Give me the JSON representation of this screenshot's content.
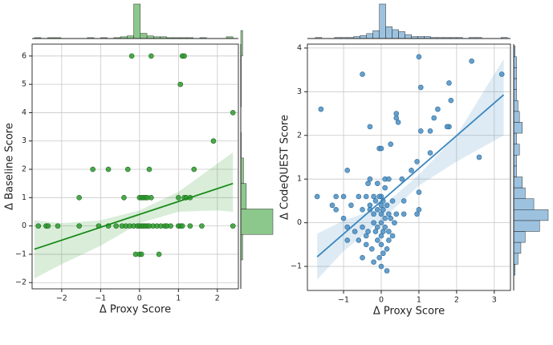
{
  "chart_data": [
    {
      "type": "scatter",
      "xlabel": "Δ Proxy Score",
      "ylabel": "Δ Baseline Score",
      "color": "#2e9a2e",
      "edgecolor": "#1c6b1c",
      "xlim": [
        -2.76,
        2.54
      ],
      "ylim": [
        -2.22,
        6.42
      ],
      "xticks": [
        {
          "value": -2,
          "label": "−2"
        },
        {
          "value": -1,
          "label": "−1"
        },
        0,
        1,
        2
      ],
      "yticks": [
        {
          "value": -2,
          "label": "−2"
        },
        {
          "value": -1,
          "label": "−1"
        },
        0,
        1,
        2,
        3,
        4,
        5,
        6
      ],
      "grid": true,
      "x": [
        -0.2,
        0.3,
        1.1,
        1.15,
        1.05,
        2.4,
        1.9,
        -1.2,
        -0.8,
        -0.3,
        0.25,
        1.4,
        -1.55,
        -0.4,
        0,
        0.05,
        0.1,
        0.15,
        0.2,
        0.3,
        1.0,
        1.15,
        1.2,
        1.3,
        -2.6,
        -2.4,
        -2.35,
        -2.1,
        -1.55,
        -1.05,
        -0.8,
        -0.6,
        -0.45,
        -0.35,
        -0.25,
        -0.15,
        -0.05,
        0,
        0.05,
        0.1,
        0.15,
        0.2,
        0.25,
        0.35,
        0.45,
        0.55,
        0.65,
        0.7,
        0.8,
        1.0,
        1.05,
        1.1,
        1.3,
        1.6,
        2.4,
        -0.1,
        0,
        0.05,
        0.5
      ],
      "y": [
        6,
        6,
        6,
        6,
        5,
        4,
        3,
        2,
        2,
        2,
        2,
        2,
        1,
        1,
        1,
        1,
        1,
        1,
        1,
        1,
        1,
        1,
        1,
        1,
        0,
        0,
        0,
        0,
        0,
        0,
        0,
        0,
        0,
        0,
        0,
        0,
        0,
        0,
        0,
        0,
        0,
        0,
        0,
        0,
        0,
        0,
        0,
        0,
        0,
        0,
        0,
        0,
        0,
        0,
        0,
        -1,
        -1,
        -1,
        -1
      ],
      "regression": {
        "x": [
          -2.7,
          2.4
        ],
        "y": [
          -0.82,
          1.5
        ]
      },
      "band": {
        "x": [
          -2.7,
          -2,
          -1,
          0,
          1,
          2,
          2.4
        ],
        "lower": [
          -1.85,
          -1.35,
          -0.7,
          0.1,
          0.5,
          0.55,
          0.5
        ],
        "upper": [
          0.2,
          0.1,
          0.2,
          0.55,
          1.2,
          2.2,
          2.6
        ]
      },
      "x_hist": {
        "bins": [
          -2.7,
          -2.53,
          -2.36,
          -2.19,
          -2.02,
          -1.85,
          -1.68,
          -1.51,
          -1.34,
          -1.17,
          -1.0,
          -0.83,
          -0.66,
          -0.49,
          -0.32,
          -0.15,
          0.02,
          0.19,
          0.36,
          0.53,
          0.7,
          0.87,
          1.04,
          1.21,
          1.38,
          1.55,
          1.72,
          1.89,
          2.06,
          2.23,
          2.4
        ],
        "counts": [
          1,
          0,
          1,
          1,
          0,
          0,
          0,
          0,
          1,
          0,
          1,
          0,
          1,
          2,
          3,
          40,
          6,
          3,
          2,
          2,
          1,
          1,
          1,
          1,
          0,
          1,
          0,
          0,
          0,
          2
        ]
      },
      "y_hist": {
        "bins": [
          -1.2,
          -0.3,
          0.6,
          1.5,
          2.4,
          3.3,
          4.2,
          5.1,
          6.0,
          6.9
        ],
        "counts": [
          4,
          70,
          12,
          6,
          1,
          0,
          1,
          1,
          4
        ]
      }
    },
    {
      "type": "scatter",
      "xlabel": "Δ Proxy Score",
      "ylabel": "Δ CodeQUEST Score",
      "color": "#4a8fc4",
      "edgecolor": "#2f6a99",
      "xlim": [
        -1.96,
        3.43
      ],
      "ylim": [
        -1.55,
        4.09
      ],
      "xticks": [
        {
          "value": -1,
          "label": "−1"
        },
        0,
        1,
        2,
        3
      ],
      "yticks": [
        {
          "value": -1,
          "label": "−1"
        },
        0,
        1,
        2,
        3,
        4
      ],
      "grid": true,
      "x": [
        3.2,
        2.4,
        1.0,
        1.8,
        1.05,
        -0.5,
        -1.6,
        1.85,
        1.5,
        0.4,
        0.45,
        1.4,
        -0.3,
        0.4,
        1.8,
        1.75,
        1.3,
        1.05,
        -0.05,
        0,
        0.25,
        1.3,
        2.6,
        0.95,
        -0.9,
        0.8,
        -0.3,
        0.1,
        0.2,
        -0.1,
        -0.35,
        0.55,
        -1.2,
        -1.0,
        -0.6,
        -0.4,
        -0.2,
        -0.15,
        0,
        0.05,
        0.15,
        0.3,
        1.0,
        1.0,
        0.6,
        -1.3,
        -1.7,
        -0.8,
        -0.5,
        -0.3,
        -0.2,
        -0.1,
        0,
        0.05,
        0.1,
        0.2,
        0.35,
        0.6,
        0.95,
        -1.0,
        -1.2,
        -0.9,
        -0.7,
        -0.5,
        -0.4,
        -0.2,
        -0.1,
        0,
        0.05,
        0.1,
        0.2,
        0.3,
        -0.6,
        -0.4,
        -0.1,
        0,
        0.2,
        0.15,
        -0.25,
        -0.5,
        -0.2,
        -0.05,
        0,
        0.15,
        0.05,
        -0.9,
        0,
        0.1,
        -0.05,
        0.25,
        -0.3,
        -0.15,
        0,
        0.4,
        -0.35
      ],
      "y": [
        3.4,
        3.7,
        3.8,
        3.2,
        3.1,
        3.4,
        2.6,
        2.8,
        2.6,
        2.5,
        2.3,
        2.4,
        2.2,
        2.4,
        2.2,
        2.2,
        2.1,
        2.1,
        1.7,
        1.7,
        1.8,
        1.6,
        1.5,
        1.4,
        1.2,
        1.2,
        1.0,
        1.0,
        1.0,
        0.9,
        0.9,
        1.0,
        0.6,
        0.6,
        0.6,
        0.6,
        0.6,
        0.5,
        0.6,
        0.5,
        0.4,
        0.5,
        0.7,
        0.3,
        0.5,
        0.4,
        0.6,
        0.4,
        0.3,
        0.3,
        0.2,
        0.3,
        0.2,
        0.3,
        0.1,
        0.2,
        0.0,
        0.2,
        0.2,
        0.1,
        0.3,
        -0.1,
        -0.2,
        -0.1,
        -0.3,
        0.0,
        -0.1,
        0.0,
        -0.2,
        -0.1,
        -0.2,
        -0.3,
        -0.4,
        -0.5,
        -0.4,
        -0.5,
        -0.4,
        -0.6,
        -0.6,
        -0.8,
        -0.9,
        -0.8,
        -1.0,
        -1.1,
        -0.7,
        -0.4,
        0.4,
        0.8,
        0.6,
        0.1,
        0.4,
        -0.2,
        -0.3,
        0.2,
        -0.2
      ],
      "regression": {
        "x": [
          -1.7,
          3.25
        ],
        "y": [
          -0.78,
          2.93
        ]
      },
      "band": {
        "x": [
          -1.7,
          -1,
          0,
          1,
          2,
          3.25
        ],
        "lower": [
          -1.3,
          -0.65,
          0.05,
          0.85,
          1.4,
          2.0
        ],
        "upper": [
          -0.25,
          0.05,
          0.35,
          1.1,
          2.0,
          3.75
        ]
      },
      "x_hist": {
        "bins": [
          -1.75,
          -1.58,
          -1.41,
          -1.24,
          -1.07,
          -0.9,
          -0.73,
          -0.56,
          -0.39,
          -0.22,
          -0.05,
          0.12,
          0.29,
          0.46,
          0.63,
          0.8,
          0.97,
          1.14,
          1.31,
          1.48,
          1.65,
          1.82,
          1.99,
          2.16,
          2.33,
          2.5,
          2.67,
          2.84,
          3.01,
          3.18,
          3.35
        ],
        "counts": [
          1,
          0,
          0,
          1,
          1,
          1,
          2,
          3,
          5,
          8,
          35,
          12,
          9,
          7,
          4,
          2,
          2,
          2,
          1,
          1,
          1,
          1,
          1,
          0,
          1,
          1,
          0,
          0,
          0,
          1
        ]
      },
      "y_hist": {
        "bins": [
          -1.2,
          -0.95,
          -0.7,
          -0.45,
          -0.2,
          0.05,
          0.3,
          0.55,
          0.8,
          1.05,
          1.3,
          1.55,
          1.8,
          2.05,
          2.3,
          2.55,
          2.8,
          3.05,
          3.3,
          3.55,
          3.8,
          4.05
        ],
        "counts": [
          1,
          3,
          5,
          8,
          18,
          24,
          14,
          8,
          6,
          2,
          2,
          4,
          2,
          6,
          4,
          3,
          2,
          2,
          2,
          2,
          1
        ]
      }
    }
  ]
}
